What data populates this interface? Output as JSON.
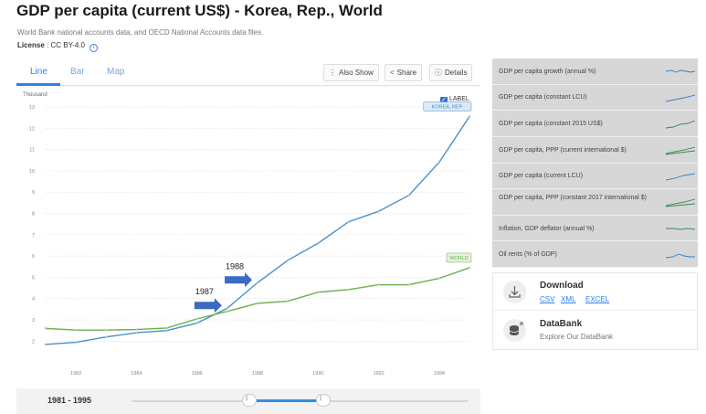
{
  "header": {
    "title": "GDP per capita (current US$) - Korea, Rep., World",
    "subtitle": "World Bank national accounts data, and OECD National Accounts data files.",
    "license_label": "License",
    "license_value": ": CC BY-4.0"
  },
  "toolbar": {
    "tabs": [
      {
        "label": "Line",
        "active": true
      },
      {
        "label": "Bar",
        "active": false
      },
      {
        "label": "Map",
        "active": false
      }
    ],
    "also_show": "Also Show",
    "share": "Share",
    "details": "Details"
  },
  "chart": {
    "unit_label": "Thousand",
    "label_toggle": "LABEL",
    "range_text": "1981 - 1995",
    "range_start_fraction": 0.35,
    "range_end_fraction": 0.57,
    "annotations": [
      {
        "text": "1987",
        "x": 1987
      },
      {
        "text": "1988",
        "x": 1988
      }
    ],
    "accent": "#2f80ed"
  },
  "chart_data": {
    "type": "line",
    "x": [
      1981,
      1982,
      1983,
      1984,
      1985,
      1986,
      1987,
      1988,
      1989,
      1990,
      1991,
      1992,
      1993,
      1994,
      1995
    ],
    "series": [
      {
        "name": "KOREA, REP.",
        "color": "#4a90c8",
        "values": [
          1.85,
          1.95,
          2.2,
          2.4,
          2.5,
          2.85,
          3.55,
          4.75,
          5.8,
          6.6,
          7.6,
          8.1,
          8.85,
          10.4,
          12.55
        ]
      },
      {
        "name": "WORLD",
        "color": "#6ab04c",
        "values": [
          2.6,
          2.52,
          2.52,
          2.55,
          2.62,
          3.05,
          3.4,
          3.78,
          3.88,
          4.3,
          4.42,
          4.65,
          4.65,
          4.95,
          5.45
        ]
      }
    ],
    "ylim": [
      1.5,
      13
    ],
    "yticks": [
      2,
      3,
      4,
      5,
      6,
      7,
      8,
      9,
      10,
      11,
      12,
      13
    ],
    "xticks": [
      1982,
      1984,
      1986,
      1988,
      1990,
      1992,
      1994
    ],
    "ylabel": "Thousand",
    "grid": true
  },
  "sidebar": {
    "indicators": [
      {
        "label": "GDP per capita growth (annual %)",
        "icon": "sparkline-icon"
      },
      {
        "label": "GDP per capita (constant LCU)",
        "icon": "sparkline-icon"
      },
      {
        "label": "GDP per capita (constant 2015 US$)",
        "icon": "sparkline-icon"
      },
      {
        "label": "GDP per capita, PPP (current international $)",
        "icon": "sparkline-icon"
      },
      {
        "label": "GDP per capita (current LCU)",
        "icon": "sparkline-icon"
      },
      {
        "label": "GDP per capita, PPP (constant 2017 international $)",
        "icon": "sparkline-icon"
      },
      {
        "label": "Inflation, GDP deflator (annual %)",
        "icon": "sparkline-icon"
      },
      {
        "label": "Oil rents (% of GDP)",
        "icon": "sparkline-icon"
      }
    ]
  },
  "download": {
    "title": "Download",
    "links": [
      "CSV",
      "XML",
      "EXCEL"
    ],
    "databank_title": "DataBank",
    "databank_sub": "Explore Our DataBank"
  }
}
